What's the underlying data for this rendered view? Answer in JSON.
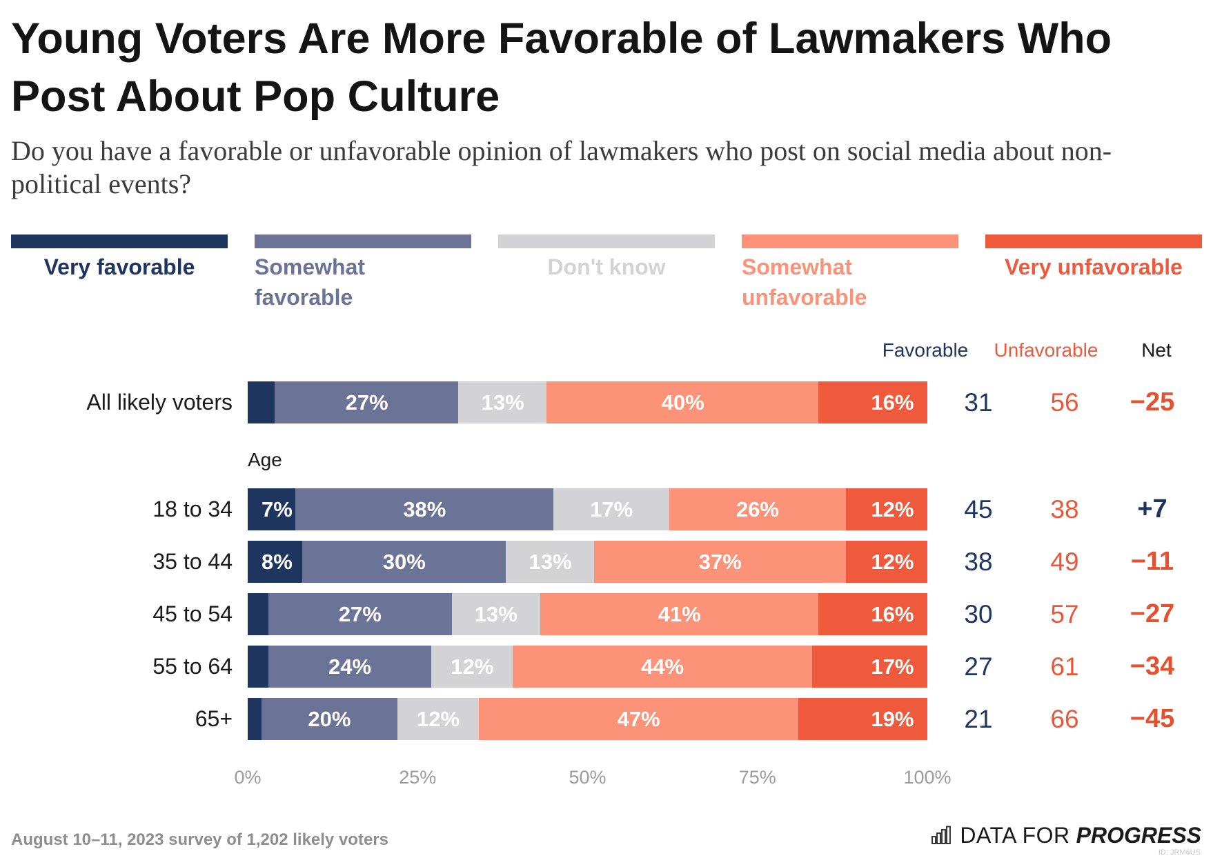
{
  "title": "Young Voters Are More Favorable of Lawmakers Who Post About Pop Culture",
  "subtitle": "Do you have a favorable or unfavorable opinion of lawmakers who post on social media about non-political events?",
  "chart_data": {
    "type": "bar",
    "orientation": "horizontal",
    "stacked": true,
    "legend_position": "top",
    "grid": false,
    "categories": [
      "All likely voters",
      "18 to 34",
      "35 to 44",
      "45 to 54",
      "55 to 64",
      "65+"
    ],
    "category_groups": [
      "",
      "Age",
      "Age",
      "Age",
      "Age",
      "Age"
    ],
    "series": [
      {
        "name": "Very favorable",
        "color": "#1e3560",
        "values": [
          4,
          7,
          8,
          3,
          3,
          2
        ]
      },
      {
        "name": "Somewhat favorable",
        "color": "#6b7396",
        "values": [
          27,
          38,
          30,
          27,
          24,
          20
        ]
      },
      {
        "name": "Don't know",
        "color": "#d3d3d5",
        "values": [
          13,
          17,
          13,
          13,
          12,
          12
        ]
      },
      {
        "name": "Somewhat unfavorable",
        "color": "#fc9278",
        "values": [
          40,
          26,
          37,
          41,
          44,
          47
        ]
      },
      {
        "name": "Very unfavorable",
        "color": "#ef5a3c",
        "values": [
          16,
          12,
          12,
          16,
          17,
          19
        ]
      }
    ],
    "value_suffix": "%",
    "xlim": [
      0,
      100
    ],
    "xticks": [
      0,
      25,
      50,
      75,
      100
    ],
    "xtick_labels": [
      "0%",
      "25%",
      "50%",
      "75%",
      "100%"
    ],
    "summary_headers": {
      "favorable": "Favorable",
      "unfavorable": "Unfavorable",
      "net": "Net"
    },
    "summary": {
      "favorable": [
        31,
        45,
        38,
        30,
        27,
        21
      ],
      "unfavorable": [
        56,
        38,
        49,
        57,
        61,
        66
      ],
      "net": [
        "−25",
        "+7",
        "−11",
        "−27",
        "−34",
        "−45"
      ]
    },
    "colors": {
      "favorable": "#1e3560",
      "unfavorable": "#e9573b",
      "net_positive": "#1e3560",
      "net_negative": "#e5502e"
    }
  },
  "footer": {
    "source": "August 10–11, 2023 survey of 1,202 likely voters",
    "logo_regular": "DATA FOR",
    "logo_bold": "PROGRESS",
    "logo_icon": "bar-chart-icon",
    "chart_id": "ID: JRM6US"
  }
}
